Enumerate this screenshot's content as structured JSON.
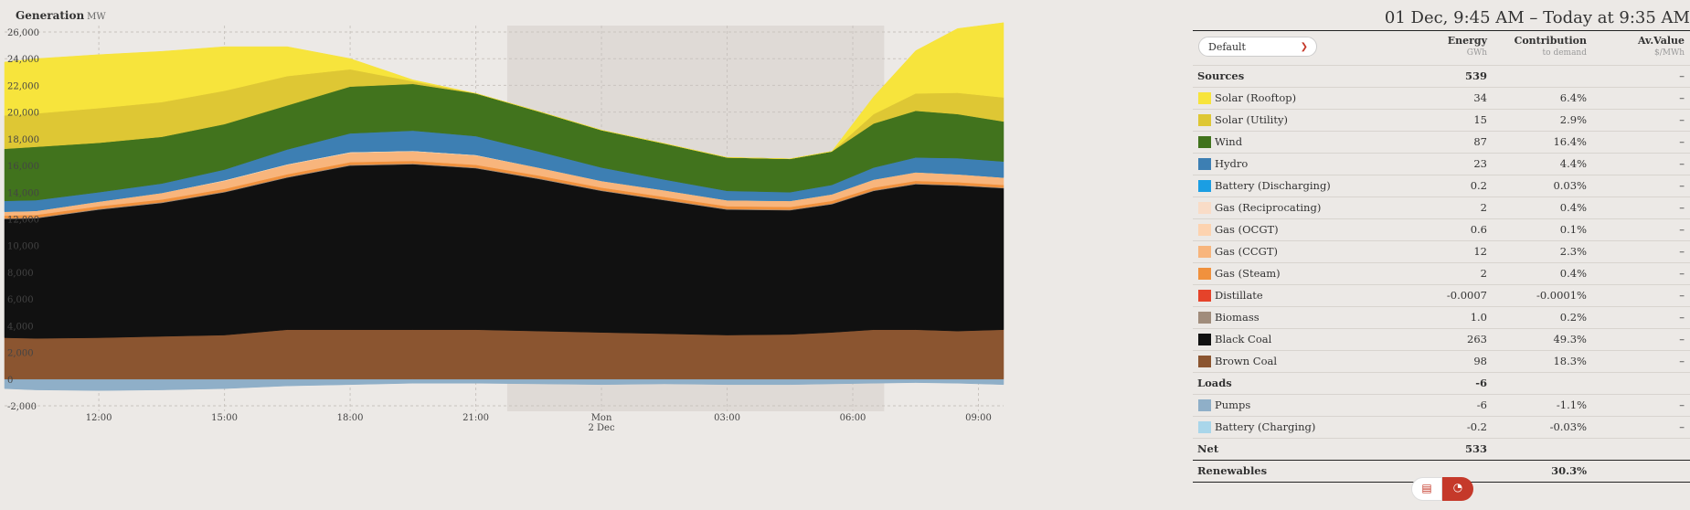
{
  "chart": {
    "title": "Generation",
    "unit": "MW"
  },
  "date_range": "01 Dec, 9:45 AM – Today at 9:35 AM",
  "chart_data": {
    "type": "area",
    "stacked": true,
    "title": "Generation",
    "ylabel": "MW",
    "ylim": [
      -2000,
      26000
    ],
    "yticks": [
      -2000,
      0,
      2000,
      4000,
      6000,
      8000,
      10000,
      12000,
      14000,
      16000,
      18000,
      20000,
      22000,
      24000,
      26000
    ],
    "ytick_labels": [
      "-2,000",
      "0",
      "2,000",
      "4,000",
      "6,000",
      "8,000",
      "10,000",
      "12,000",
      "14,000",
      "16,000",
      "18,000",
      "20,000",
      "22,000",
      "24,000",
      "26,000"
    ],
    "xlim": [
      9.75,
      33.6
    ],
    "x_tick_hours": [
      12,
      15,
      18,
      21,
      24,
      27,
      30,
      33
    ],
    "xtick_labels": [
      "12:00",
      "15:00",
      "18:00",
      "21:00",
      "Mon",
      "03:00",
      "06:00",
      "09:00"
    ],
    "xtick_sublabels": [
      "",
      "",
      "",
      "",
      "2 Dec",
      "",
      "",
      ""
    ],
    "night_shading": [
      21.75,
      30.75
    ],
    "grid": true,
    "x": [
      9.75,
      10.5,
      12,
      13.5,
      15,
      16.5,
      18,
      19.5,
      21,
      22.5,
      24,
      25.5,
      27,
      28.5,
      29.5,
      30.5,
      31.5,
      32.5,
      33.6
    ],
    "series": [
      {
        "name": "Battery (Charging)",
        "color": "#a9d6ea",
        "values": [
          -10,
          -10,
          -10,
          -10,
          -10,
          -10,
          -10,
          -10,
          -10,
          -10,
          -10,
          -10,
          -10,
          -10,
          -10,
          -10,
          -10,
          -10,
          -10
        ]
      },
      {
        "name": "Pumps",
        "color": "#8fafc8",
        "values": [
          -700,
          -800,
          -850,
          -800,
          -700,
          -500,
          -400,
          -300,
          -300,
          -350,
          -400,
          -350,
          -400,
          -400,
          -350,
          -300,
          -250,
          -300,
          -400
        ]
      },
      {
        "name": "Brown Coal",
        "color": "#8b5530",
        "values": [
          3100,
          3050,
          3100,
          3200,
          3300,
          3700,
          3700,
          3700,
          3700,
          3600,
          3500,
          3400,
          3300,
          3350,
          3500,
          3700,
          3700,
          3600,
          3700
        ]
      },
      {
        "name": "Black Coal",
        "color": "#111111",
        "values": [
          8900,
          9000,
          9600,
          10000,
          10700,
          11400,
          12300,
          12400,
          12100,
          11400,
          10600,
          10000,
          9400,
          9300,
          9600,
          10400,
          10900,
          10900,
          10600
        ]
      },
      {
        "name": "Biomass",
        "color": "#a08c7b",
        "values": [
          50,
          50,
          50,
          50,
          50,
          50,
          50,
          50,
          50,
          50,
          50,
          50,
          50,
          50,
          50,
          50,
          50,
          50,
          50
        ]
      },
      {
        "name": "Gas (Steam)",
        "color": "#f0913d",
        "values": [
          200,
          200,
          200,
          200,
          200,
          200,
          200,
          200,
          200,
          200,
          200,
          200,
          200,
          200,
          200,
          200,
          200,
          200,
          200
        ]
      },
      {
        "name": "Gas (CCGT)",
        "color": "#f8b57c",
        "values": [
          300,
          300,
          350,
          500,
          600,
          700,
          700,
          700,
          700,
          600,
          500,
          500,
          450,
          450,
          500,
          600,
          650,
          600,
          550
        ]
      },
      {
        "name": "Gas (OCGT)",
        "color": "#fdd3b0",
        "values": [
          0,
          0,
          0,
          0,
          50,
          50,
          60,
          60,
          50,
          0,
          0,
          0,
          0,
          0,
          0,
          0,
          0,
          0,
          0
        ]
      },
      {
        "name": "Gas (Reciprocating)",
        "color": "#f9dcc7",
        "values": [
          0,
          0,
          0,
          0,
          0,
          0,
          0,
          0,
          0,
          0,
          0,
          0,
          0,
          0,
          0,
          0,
          0,
          0,
          0
        ]
      },
      {
        "name": "Battery (Discharging)",
        "color": "#1b9ee3",
        "values": [
          0,
          0,
          0,
          0,
          0,
          0,
          0,
          0,
          0,
          0,
          0,
          0,
          0,
          0,
          0,
          0,
          0,
          0,
          0
        ]
      },
      {
        "name": "Hydro",
        "color": "#3d7fb3",
        "values": [
          800,
          800,
          700,
          700,
          800,
          1100,
          1400,
          1500,
          1400,
          1200,
          1000,
          800,
          700,
          650,
          700,
          900,
          1100,
          1200,
          1200
        ]
      },
      {
        "name": "Wind",
        "color": "#41731d",
        "values": [
          3900,
          4000,
          3700,
          3500,
          3400,
          3300,
          3500,
          3500,
          3200,
          3000,
          2800,
          2700,
          2500,
          2500,
          2500,
          3300,
          3500,
          3300,
          3000
        ]
      },
      {
        "name": "Solar (Utility)",
        "color": "#dec734",
        "values": [
          2500,
          2500,
          2600,
          2600,
          2500,
          2200,
          1300,
          200,
          0,
          0,
          0,
          0,
          0,
          0,
          0,
          700,
          1300,
          1600,
          1800
        ]
      },
      {
        "name": "Solar (Rooftop)",
        "color": "#f7e43c",
        "values": [
          4000,
          4100,
          4000,
          3800,
          3300,
          2200,
          800,
          100,
          0,
          0,
          0,
          0,
          0,
          0,
          0,
          1300,
          3200,
          4800,
          5600
        ]
      }
    ]
  },
  "summary": {
    "dropdown": "Default",
    "columns": [
      {
        "label": "Energy",
        "sub": "GWh"
      },
      {
        "label": "Contribution",
        "sub": "to demand"
      },
      {
        "label": "Av.Value",
        "sub": "$/MWh"
      }
    ],
    "rows": [
      {
        "type": "group",
        "label": "Sources",
        "energy": "539",
        "contribution": "",
        "value": "–"
      },
      {
        "type": "item",
        "label": "Solar (Rooftop)",
        "color": "#f7e43c",
        "energy": "34",
        "contribution": "6.4%",
        "value": "–"
      },
      {
        "type": "item",
        "label": "Solar (Utility)",
        "color": "#dec734",
        "energy": "15",
        "contribution": "2.9%",
        "value": "–"
      },
      {
        "type": "item",
        "label": "Wind",
        "color": "#41731d",
        "energy": "87",
        "contribution": "16.4%",
        "value": "–"
      },
      {
        "type": "item",
        "label": "Hydro",
        "color": "#3d7fb3",
        "energy": "23",
        "contribution": "4.4%",
        "value": "–"
      },
      {
        "type": "item",
        "label": "Battery (Discharging)",
        "color": "#1b9ee3",
        "energy": "0.2",
        "contribution": "0.03%",
        "value": "–"
      },
      {
        "type": "item",
        "label": "Gas (Reciprocating)",
        "color": "#f9dcc7",
        "energy": "2",
        "contribution": "0.4%",
        "value": "–"
      },
      {
        "type": "item",
        "label": "Gas (OCGT)",
        "color": "#fdd3b0",
        "energy": "0.6",
        "contribution": "0.1%",
        "value": "–"
      },
      {
        "type": "item",
        "label": "Gas (CCGT)",
        "color": "#f8b57c",
        "energy": "12",
        "contribution": "2.3%",
        "value": "–"
      },
      {
        "type": "item",
        "label": "Gas (Steam)",
        "color": "#f0913d",
        "energy": "2",
        "contribution": "0.4%",
        "value": "–"
      },
      {
        "type": "item",
        "label": "Distillate",
        "color": "#e5432a",
        "energy": "-0.0007",
        "contribution": "-0.0001%",
        "value": "–"
      },
      {
        "type": "item",
        "label": "Biomass",
        "color": "#a08c7b",
        "energy": "1.0",
        "contribution": "0.2%",
        "value": "–"
      },
      {
        "type": "item",
        "label": "Black Coal",
        "color": "#111111",
        "energy": "263",
        "contribution": "49.3%",
        "value": "–"
      },
      {
        "type": "item",
        "label": "Brown Coal",
        "color": "#8b5530",
        "energy": "98",
        "contribution": "18.3%",
        "value": "–"
      },
      {
        "type": "group",
        "label": "Loads",
        "energy": "-6",
        "contribution": "",
        "value": ""
      },
      {
        "type": "item",
        "label": "Pumps",
        "color": "#8fafc8",
        "energy": "-6",
        "contribution": "-1.1%",
        "value": "–"
      },
      {
        "type": "item",
        "label": "Battery (Charging)",
        "color": "#a9d6ea",
        "energy": "-0.2",
        "contribution": "-0.03%",
        "value": "–"
      },
      {
        "type": "group",
        "label": "Net",
        "energy": "533",
        "contribution": "",
        "value": ""
      },
      {
        "type": "renewables",
        "label": "Renewables",
        "energy": "",
        "contribution": "30.3%",
        "value": ""
      }
    ]
  },
  "toggle": {
    "left_icon": "bar-chart-icon",
    "right_icon": "pie-chart-icon",
    "active": "right"
  }
}
